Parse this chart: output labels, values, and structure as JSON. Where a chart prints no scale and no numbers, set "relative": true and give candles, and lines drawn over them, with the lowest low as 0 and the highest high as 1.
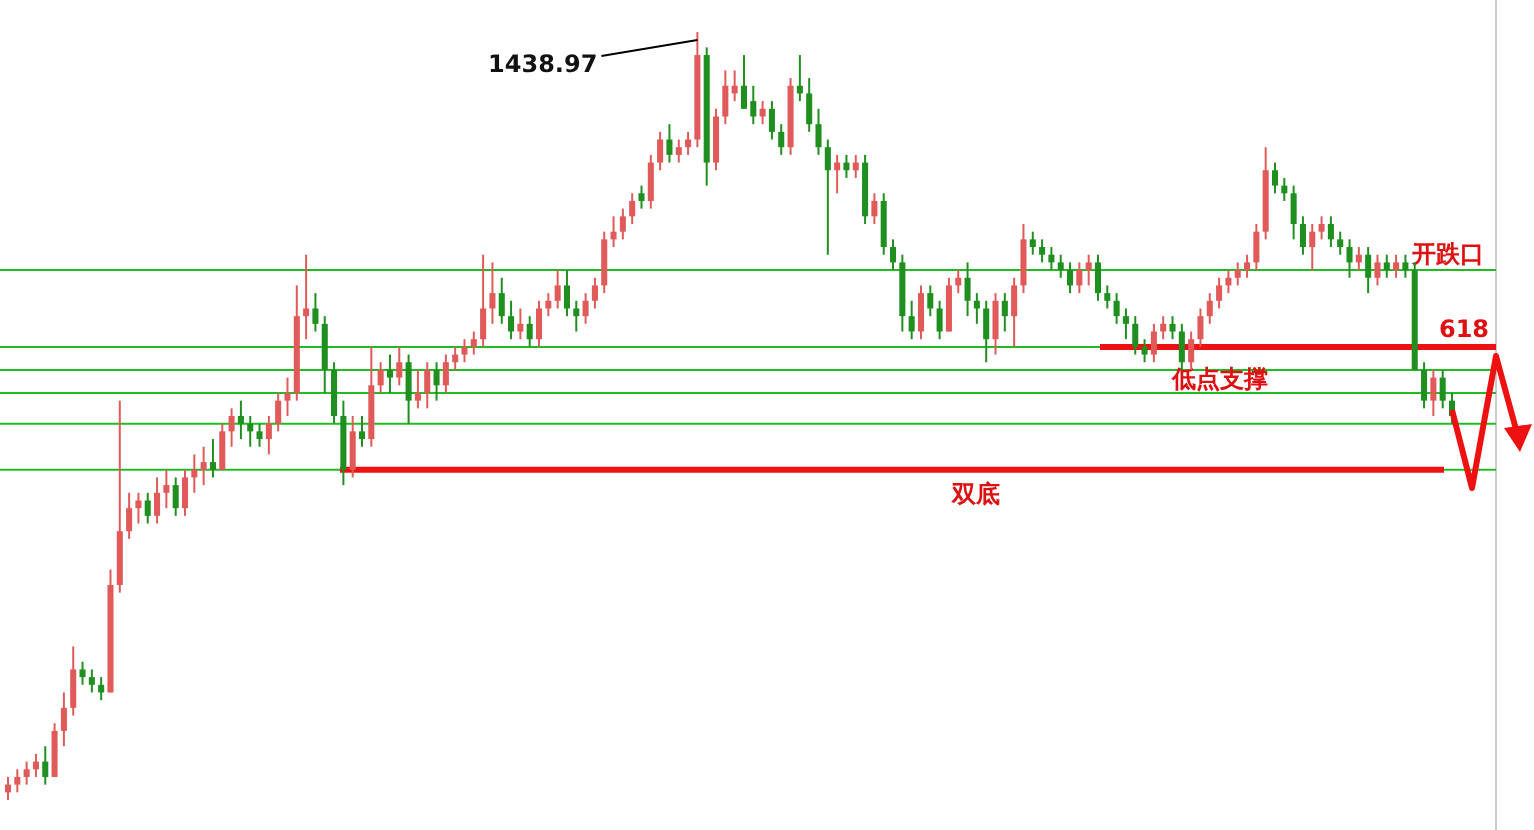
{
  "chart_data": {
    "type": "candlestick",
    "relative": true,
    "categories": [
      null,
      null,
      null,
      null,
      null,
      null,
      null,
      null,
      null,
      null,
      null,
      null,
      null,
      null,
      null,
      null,
      null,
      null,
      null,
      null,
      null,
      null,
      null,
      null,
      null,
      null,
      null,
      null,
      null,
      null,
      null,
      null,
      null,
      null,
      null,
      null,
      null,
      null,
      null,
      null,
      null,
      null,
      null,
      null,
      null,
      null,
      null,
      null,
      null,
      null,
      null,
      null,
      null,
      null,
      null,
      null,
      null,
      null,
      null,
      null,
      null,
      null,
      null,
      null,
      null,
      null,
      null,
      null,
      null,
      null,
      null,
      null,
      null,
      null,
      null,
      null,
      null,
      null,
      null,
      null,
      null,
      null,
      null,
      null,
      null,
      null,
      null,
      null,
      null,
      null,
      null,
      null,
      null,
      null,
      null,
      null,
      null,
      null,
      null,
      null,
      null,
      null,
      null,
      null,
      null,
      null,
      null,
      null,
      null,
      null,
      null,
      null,
      null,
      null,
      null,
      null,
      null,
      null,
      null,
      null,
      null,
      null,
      null,
      null,
      null,
      null,
      null,
      null,
      null,
      null,
      null,
      null,
      null,
      null,
      null,
      null,
      null,
      null,
      null,
      null,
      null,
      null,
      null,
      null,
      null,
      null,
      null,
      null,
      null,
      null,
      null,
      null,
      null,
      null,
      null,
      null
    ],
    "ohlc": [
      [
        0.01,
        0.03,
        0,
        0.02
      ],
      [
        0.02,
        0.04,
        0.01,
        0.03
      ],
      [
        0.03,
        0.05,
        0.02,
        0.04
      ],
      [
        0.04,
        0.06,
        0.03,
        0.05
      ],
      [
        0.05,
        0.07,
        0.02,
        0.03
      ],
      [
        0.03,
        0.1,
        0.03,
        0.09
      ],
      [
        0.09,
        0.14,
        0.07,
        0.12
      ],
      [
        0.12,
        0.2,
        0.11,
        0.17
      ],
      [
        0.17,
        0.18,
        0.15,
        0.16
      ],
      [
        0.16,
        0.17,
        0.14,
        0.15
      ],
      [
        0.15,
        0.16,
        0.13,
        0.14
      ],
      [
        0.14,
        0.3,
        0.14,
        0.28
      ],
      [
        0.28,
        0.52,
        0.27,
        0.35
      ],
      [
        0.35,
        0.4,
        0.34,
        0.38
      ],
      [
        0.38,
        0.4,
        0.36,
        0.39
      ],
      [
        0.39,
        0.4,
        0.36,
        0.37
      ],
      [
        0.37,
        0.42,
        0.36,
        0.4
      ],
      [
        0.4,
        0.43,
        0.38,
        0.41
      ],
      [
        0.41,
        0.42,
        0.37,
        0.38
      ],
      [
        0.38,
        0.43,
        0.37,
        0.42
      ],
      [
        0.42,
        0.45,
        0.4,
        0.43
      ],
      [
        0.43,
        0.46,
        0.41,
        0.44
      ],
      [
        0.44,
        0.47,
        0.42,
        0.43
      ],
      [
        0.43,
        0.49,
        0.43,
        0.48
      ],
      [
        0.48,
        0.51,
        0.46,
        0.5
      ],
      [
        0.5,
        0.52,
        0.47,
        0.49
      ],
      [
        0.49,
        0.5,
        0.46,
        0.48
      ],
      [
        0.48,
        0.49,
        0.46,
        0.47
      ],
      [
        0.47,
        0.5,
        0.45,
        0.49
      ],
      [
        0.49,
        0.53,
        0.48,
        0.52
      ],
      [
        0.52,
        0.55,
        0.5,
        0.53
      ],
      [
        0.53,
        0.67,
        0.52,
        0.63
      ],
      [
        0.63,
        0.71,
        0.6,
        0.64
      ],
      [
        0.64,
        0.66,
        0.61,
        0.62
      ],
      [
        0.62,
        0.63,
        0.53,
        0.56
      ],
      [
        0.56,
        0.57,
        0.49,
        0.5
      ],
      [
        0.5,
        0.52,
        0.41,
        0.43
      ],
      [
        0.43,
        0.5,
        0.42,
        0.48
      ],
      [
        0.48,
        0.5,
        0.46,
        0.47
      ],
      [
        0.47,
        0.59,
        0.46,
        0.54
      ],
      [
        0.54,
        0.57,
        0.53,
        0.56
      ],
      [
        0.56,
        0.58,
        0.53,
        0.55
      ],
      [
        0.55,
        0.59,
        0.54,
        0.57
      ],
      [
        0.57,
        0.58,
        0.49,
        0.52
      ],
      [
        0.52,
        0.56,
        0.51,
        0.53
      ],
      [
        0.53,
        0.57,
        0.51,
        0.56
      ],
      [
        0.56,
        0.57,
        0.52,
        0.54
      ],
      [
        0.54,
        0.58,
        0.53,
        0.57
      ],
      [
        0.57,
        0.59,
        0.56,
        0.58
      ],
      [
        0.58,
        0.6,
        0.57,
        0.59
      ],
      [
        0.59,
        0.61,
        0.58,
        0.6
      ],
      [
        0.6,
        0.71,
        0.59,
        0.64
      ],
      [
        0.64,
        0.7,
        0.62,
        0.66
      ],
      [
        0.66,
        0.68,
        0.62,
        0.63
      ],
      [
        0.63,
        0.65,
        0.6,
        0.61
      ],
      [
        0.61,
        0.64,
        0.6,
        0.62
      ],
      [
        0.62,
        0.63,
        0.59,
        0.6
      ],
      [
        0.6,
        0.65,
        0.59,
        0.64
      ],
      [
        0.64,
        0.66,
        0.63,
        0.65
      ],
      [
        0.65,
        0.69,
        0.64,
        0.67
      ],
      [
        0.67,
        0.69,
        0.63,
        0.64
      ],
      [
        0.64,
        0.65,
        0.61,
        0.63
      ],
      [
        0.63,
        0.66,
        0.62,
        0.65
      ],
      [
        0.65,
        0.68,
        0.64,
        0.67
      ],
      [
        0.67,
        0.74,
        0.66,
        0.73
      ],
      [
        0.73,
        0.76,
        0.72,
        0.74
      ],
      [
        0.74,
        0.77,
        0.73,
        0.76
      ],
      [
        0.76,
        0.79,
        0.75,
        0.78
      ],
      [
        0.79,
        0.8,
        0.77,
        0.78
      ],
      [
        0.78,
        0.84,
        0.77,
        0.83
      ],
      [
        0.83,
        0.87,
        0.82,
        0.86
      ],
      [
        0.86,
        0.88,
        0.83,
        0.84
      ],
      [
        0.84,
        0.86,
        0.83,
        0.85
      ],
      [
        0.85,
        0.87,
        0.84,
        0.86
      ],
      [
        0.86,
        1,
        0.85,
        0.97
      ],
      [
        0.97,
        0.98,
        0.8,
        0.83
      ],
      [
        0.83,
        0.9,
        0.82,
        0.89
      ],
      [
        0.89,
        0.95,
        0.88,
        0.93
      ],
      [
        0.92,
        0.95,
        0.91,
        0.93
      ],
      [
        0.93,
        0.97,
        0.9,
        0.9
      ],
      [
        0.91,
        0.93,
        0.88,
        0.89
      ],
      [
        0.89,
        0.91,
        0.88,
        0.9
      ],
      [
        0.9,
        0.91,
        0.86,
        0.87
      ],
      [
        0.87,
        0.88,
        0.84,
        0.85
      ],
      [
        0.85,
        0.94,
        0.84,
        0.93
      ],
      [
        0.93,
        0.97,
        0.91,
        0.92
      ],
      [
        0.92,
        0.94,
        0.87,
        0.88
      ],
      [
        0.88,
        0.9,
        0.84,
        0.85
      ],
      [
        0.85,
        0.86,
        0.71,
        0.82
      ],
      [
        0.82,
        0.84,
        0.79,
        0.83
      ],
      [
        0.83,
        0.84,
        0.81,
        0.82
      ],
      [
        0.82,
        0.84,
        0.81,
        0.83
      ],
      [
        0.83,
        0.84,
        0.75,
        0.76
      ],
      [
        0.76,
        0.79,
        0.75,
        0.78
      ],
      [
        0.78,
        0.79,
        0.71,
        0.72
      ],
      [
        0.72,
        0.73,
        0.69,
        0.7
      ],
      [
        0.7,
        0.71,
        0.61,
        0.63
      ],
      [
        0.63,
        0.65,
        0.6,
        0.61
      ],
      [
        0.61,
        0.67,
        0.6,
        0.66
      ],
      [
        0.66,
        0.67,
        0.63,
        0.64
      ],
      [
        0.64,
        0.65,
        0.6,
        0.61
      ],
      [
        0.61,
        0.68,
        0.61,
        0.67
      ],
      [
        0.67,
        0.69,
        0.66,
        0.68
      ],
      [
        0.68,
        0.7,
        0.63,
        0.65
      ],
      [
        0.65,
        0.66,
        0.62,
        0.64
      ],
      [
        0.64,
        0.65,
        0.57,
        0.6
      ],
      [
        0.6,
        0.66,
        0.58,
        0.65
      ],
      [
        0.65,
        0.66,
        0.61,
        0.63
      ],
      [
        0.63,
        0.68,
        0.59,
        0.67
      ],
      [
        0.67,
        0.75,
        0.66,
        0.73
      ],
      [
        0.73,
        0.74,
        0.71,
        0.72
      ],
      [
        0.72,
        0.73,
        0.7,
        0.71
      ],
      [
        0.71,
        0.72,
        0.69,
        0.7
      ],
      [
        0.7,
        0.71,
        0.68,
        0.69
      ],
      [
        0.69,
        0.7,
        0.66,
        0.67
      ],
      [
        0.67,
        0.7,
        0.66,
        0.69
      ],
      [
        0.69,
        0.71,
        0.67,
        0.7
      ],
      [
        0.7,
        0.71,
        0.65,
        0.66
      ],
      [
        0.66,
        0.67,
        0.64,
        0.65
      ],
      [
        0.65,
        0.66,
        0.62,
        0.63
      ],
      [
        0.63,
        0.64,
        0.6,
        0.62
      ],
      [
        0.62,
        0.63,
        0.58,
        0.59
      ],
      [
        0.59,
        0.6,
        0.57,
        0.58
      ],
      [
        0.58,
        0.62,
        0.57,
        0.61
      ],
      [
        0.61,
        0.63,
        0.6,
        0.62
      ],
      [
        0.62,
        0.63,
        0.6,
        0.61
      ],
      [
        0.61,
        0.62,
        0.56,
        0.57
      ],
      [
        0.57,
        0.61,
        0.56,
        0.6
      ],
      [
        0.6,
        0.64,
        0.59,
        0.63
      ],
      [
        0.63,
        0.66,
        0.62,
        0.65
      ],
      [
        0.65,
        0.68,
        0.64,
        0.67
      ],
      [
        0.67,
        0.69,
        0.66,
        0.68
      ],
      [
        0.68,
        0.7,
        0.67,
        0.69
      ],
      [
        0.69,
        0.71,
        0.68,
        0.7
      ],
      [
        0.7,
        0.75,
        0.69,
        0.74
      ],
      [
        0.74,
        0.85,
        0.73,
        0.82
      ],
      [
        0.82,
        0.83,
        0.79,
        0.8
      ],
      [
        0.8,
        0.81,
        0.78,
        0.79
      ],
      [
        0.79,
        0.8,
        0.73,
        0.75
      ],
      [
        0.75,
        0.76,
        0.71,
        0.72
      ],
      [
        0.72,
        0.75,
        0.69,
        0.74
      ],
      [
        0.74,
        0.76,
        0.73,
        0.75
      ],
      [
        0.75,
        0.76,
        0.72,
        0.73
      ],
      [
        0.73,
        0.74,
        0.71,
        0.72
      ],
      [
        0.72,
        0.73,
        0.68,
        0.7
      ],
      [
        0.7,
        0.72,
        0.69,
        0.71
      ],
      [
        0.71,
        0.72,
        0.66,
        0.68
      ],
      [
        0.68,
        0.71,
        0.67,
        0.7
      ],
      [
        0.7,
        0.71,
        0.68,
        0.69
      ],
      [
        0.69,
        0.71,
        0.68,
        0.7
      ],
      [
        0.7,
        0.71,
        0.68,
        0.69
      ],
      [
        0.69,
        0.7,
        0.56,
        0.56
      ],
      [
        0.56,
        0.57,
        0.51,
        0.52
      ],
      [
        0.52,
        0.56,
        0.5,
        0.55
      ],
      [
        0.55,
        0.56,
        0.51,
        0.52
      ],
      [
        0.52,
        0.53,
        0.49,
        0.5
      ]
    ],
    "colors": [
      "#e05a5a",
      "#e05a5a",
      "#e05a5a",
      "#e05a5a",
      "#1f8f1f",
      "#e05a5a",
      "#e05a5a",
      "#e05a5a",
      "#1f8f1f",
      "#1f8f1f",
      "#1f8f1f",
      "#e05a5a",
      "#e05a5a",
      "#e05a5a",
      "#e05a5a",
      "#1f8f1f",
      "#e05a5a",
      "#e05a5a",
      "#1f8f1f",
      "#e05a5a",
      "#e05a5a",
      "#e05a5a",
      "#1f8f1f",
      "#e05a5a",
      "#e05a5a",
      "#1f8f1f",
      "#1f8f1f",
      "#1f8f1f",
      "#e05a5a",
      "#e05a5a",
      "#e05a5a",
      "#e05a5a",
      "#e05a5a",
      "#1f8f1f",
      "#1f8f1f",
      "#1f8f1f",
      "#1f8f1f",
      "#e05a5a",
      "#1f8f1f",
      "#e05a5a",
      "#e05a5a",
      "#1f8f1f",
      "#e05a5a",
      "#1f8f1f",
      "#e05a5a",
      "#e05a5a",
      "#1f8f1f",
      "#e05a5a",
      "#e05a5a",
      "#e05a5a",
      "#e05a5a",
      "#e05a5a",
      "#e05a5a",
      "#1f8f1f",
      "#1f8f1f",
      "#e05a5a",
      "#1f8f1f",
      "#e05a5a",
      "#e05a5a",
      "#e05a5a",
      "#1f8f1f",
      "#1f8f1f",
      "#e05a5a",
      "#e05a5a",
      "#e05a5a",
      "#e05a5a",
      "#e05a5a",
      "#e05a5a",
      "#1f8f1f",
      "#e05a5a",
      "#e05a5a",
      "#1f8f1f",
      "#e05a5a",
      "#e05a5a",
      "#e05a5a",
      "#1f8f1f",
      "#e05a5a",
      "#e05a5a",
      "#e05a5a",
      "#1f8f1f",
      "#1f8f1f",
      "#e05a5a",
      "#1f8f1f",
      "#1f8f1f",
      "#e05a5a",
      "#1f8f1f",
      "#1f8f1f",
      "#1f8f1f",
      "#1f8f1f",
      "#e05a5a",
      "#1f8f1f",
      "#e05a5a",
      "#1f8f1f",
      "#e05a5a",
      "#1f8f1f",
      "#1f8f1f",
      "#1f8f1f",
      "#1f8f1f",
      "#e05a5a",
      "#1f8f1f",
      "#1f8f1f",
      "#e05a5a",
      "#e05a5a",
      "#1f8f1f",
      "#1f8f1f",
      "#1f8f1f",
      "#e05a5a",
      "#1f8f1f",
      "#e05a5a",
      "#e05a5a",
      "#1f8f1f",
      "#1f8f1f",
      "#1f8f1f",
      "#1f8f1f",
      "#1f8f1f",
      "#e05a5a",
      "#e05a5a",
      "#1f8f1f",
      "#1f8f1f",
      "#1f8f1f",
      "#1f8f1f",
      "#1f8f1f",
      "#1f8f1f",
      "#e05a5a",
      "#e05a5a",
      "#1f8f1f",
      "#1f8f1f",
      "#e05a5a",
      "#e05a5a",
      "#e05a5a",
      "#e05a5a",
      "#e05a5a",
      "#e05a5a",
      "#e05a5a",
      "#e05a5a",
      "#e05a5a",
      "#1f8f1f",
      "#1f8f1f",
      "#1f8f1f",
      "#1f8f1f",
      "#e05a5a",
      "#e05a5a",
      "#1f8f1f",
      "#1f8f1f",
      "#1f8f1f",
      "#e05a5a",
      "#1f8f1f",
      "#e05a5a",
      "#1f8f1f",
      "#e05a5a",
      "#1f8f1f",
      "#1f8f1f",
      "#1f8f1f",
      "#e05a5a",
      "#1f8f1f",
      "#1f8f1f"
    ],
    "ref_lines": [
      {
        "axis": "y",
        "value": 0.69,
        "label": "开跌口",
        "color": "#22bb22"
      },
      {
        "axis": "y",
        "value": 0.59,
        "color": "#22bb22"
      },
      {
        "axis": "y",
        "value": 0.56,
        "color": "#22bb22"
      },
      {
        "axis": "y",
        "value": 0.53,
        "color": "#22bb22"
      },
      {
        "axis": "y",
        "value": 0.49,
        "color": "#22bb22"
      },
      {
        "axis": "y",
        "value": 0.43,
        "color": "#22bb22"
      },
      {
        "axis": "y",
        "value": 0.59,
        "label": "低点支撑",
        "color": "#ee1111"
      },
      {
        "axis": "y",
        "value": 0.43,
        "label": "双底",
        "color": "#ee1111"
      }
    ],
    "annotations": [
      "1438.97",
      {
        "text": "618",
        "y": 0.59
      }
    ]
  }
}
